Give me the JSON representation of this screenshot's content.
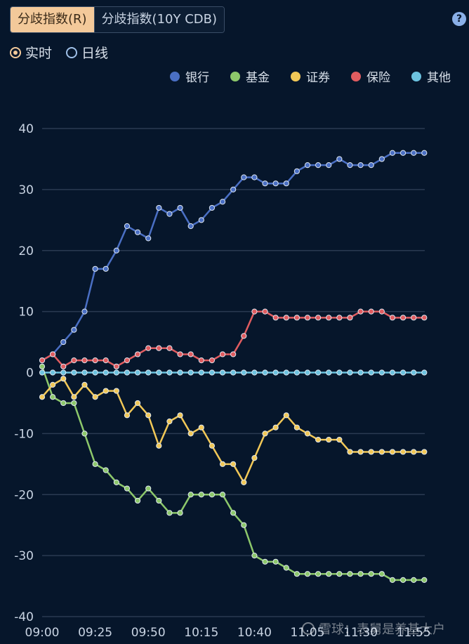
{
  "tabs": [
    {
      "label": "分歧指数(R)",
      "active": true
    },
    {
      "label": "分歧指数(10Y CDB)",
      "active": false
    }
  ],
  "help_icon": "?",
  "modes": [
    {
      "label": "实时",
      "selected": true
    },
    {
      "label": "日线",
      "selected": false
    }
  ],
  "watermark": {
    "text": "雪球：表舅是养基大户",
    "icon": "xueqiu-logo-icon"
  },
  "chart_data": {
    "type": "line",
    "xlabel": "",
    "ylabel": "",
    "ylim": [
      -40,
      40
    ],
    "yticks": [
      40,
      30,
      20,
      10,
      0,
      -10,
      -20,
      -30,
      -40
    ],
    "xtick_labels": [
      "09:00",
      "09:25",
      "09:50",
      "10:15",
      "10:40",
      "11:05",
      "11:30",
      "11:55"
    ],
    "grid": true,
    "legend": "top-right",
    "x": [
      "09:00",
      "09:05",
      "09:10",
      "09:15",
      "09:20",
      "09:25",
      "09:30",
      "09:35",
      "09:40",
      "09:45",
      "09:50",
      "09:55",
      "10:00",
      "10:05",
      "10:10",
      "10:15",
      "10:20",
      "10:25",
      "10:30",
      "10:35",
      "10:40",
      "10:45",
      "10:50",
      "10:55",
      "11:00",
      "11:05",
      "11:10",
      "11:15",
      "11:20",
      "11:25",
      "11:30",
      "11:35",
      "11:40",
      "11:45",
      "11:50",
      "11:55",
      "12:00",
      "12:05"
    ],
    "series": [
      {
        "name": "银行",
        "color": "#4a6fc4",
        "values": [
          2,
          3,
          5,
          7,
          10,
          17,
          17,
          20,
          24,
          23,
          22,
          27,
          26,
          27,
          24,
          25,
          27,
          28,
          30,
          32,
          32,
          31,
          31,
          31,
          33,
          34,
          34,
          34,
          35,
          34,
          34,
          34,
          35,
          36,
          36,
          36,
          36,
          null
        ]
      },
      {
        "name": "基金",
        "color": "#8dc86b",
        "values": [
          1,
          -4,
          -5,
          -5,
          -10,
          -15,
          -16,
          -18,
          -19,
          -21,
          -19,
          -21,
          -23,
          -23,
          -20,
          -20,
          -20,
          -20,
          -23,
          -25,
          -30,
          -31,
          -31,
          -32,
          -33,
          -33,
          -33,
          -33,
          -33,
          -33,
          -33,
          -33,
          -33,
          -34,
          -34,
          -34,
          -34,
          null
        ]
      },
      {
        "name": "证券",
        "color": "#f2c857",
        "values": [
          -4,
          -2,
          -1,
          -4,
          -2,
          -4,
          -3,
          -3,
          -7,
          -5,
          -7,
          -12,
          -8,
          -7,
          -10,
          -9,
          -12,
          -15,
          -15,
          -18,
          -14,
          -10,
          -9,
          -7,
          -9,
          -10,
          -11,
          -11,
          -11,
          -13,
          -13,
          -13,
          -13,
          -13,
          -13,
          -13,
          -13,
          null
        ]
      },
      {
        "name": "保险",
        "color": "#e05c60",
        "values": [
          2,
          3,
          1,
          2,
          2,
          2,
          2,
          1,
          2,
          3,
          4,
          4,
          4,
          3,
          3,
          2,
          2,
          3,
          3,
          6,
          10,
          10,
          9,
          9,
          9,
          9,
          9,
          9,
          9,
          9,
          10,
          10,
          10,
          9,
          9,
          9,
          9,
          null
        ]
      },
      {
        "name": "其他",
        "color": "#6cc3e0",
        "values": [
          0,
          0,
          0,
          0,
          0,
          0,
          0,
          0,
          0,
          0,
          0,
          0,
          0,
          0,
          0,
          0,
          0,
          0,
          0,
          0,
          0,
          0,
          0,
          0,
          0,
          0,
          0,
          0,
          0,
          0,
          0,
          0,
          0,
          0,
          0,
          0,
          0,
          null
        ]
      }
    ]
  }
}
